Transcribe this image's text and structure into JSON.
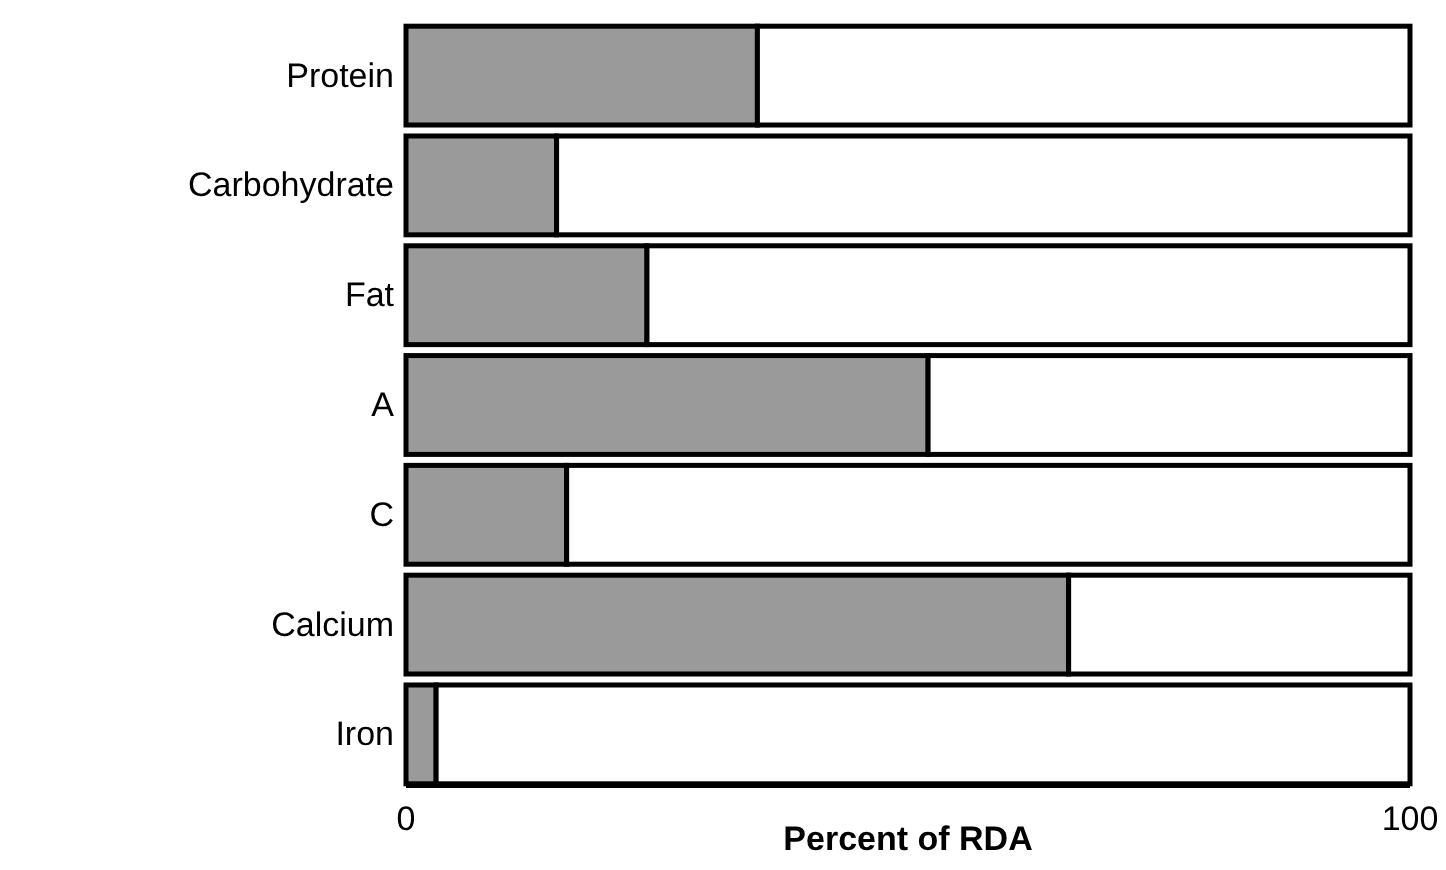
{
  "chart_data": {
    "type": "bar",
    "orientation": "horizontal",
    "stacked": true,
    "categories": [
      "Protein",
      "Carbohydrate",
      "Fat",
      "A",
      "C",
      "Calcium",
      "Iron"
    ],
    "series": [
      {
        "color": "#9a9a9a",
        "values": [
          35,
          15,
          24,
          52,
          16,
          66,
          3
        ]
      },
      {
        "color": "#ffffff",
        "values": [
          65,
          85,
          76,
          48,
          84,
          34,
          97
        ]
      }
    ],
    "xlim": [
      0,
      100
    ],
    "xticks": [
      0,
      100
    ],
    "xlabel": "Percent of RDA",
    "grid": false
  }
}
